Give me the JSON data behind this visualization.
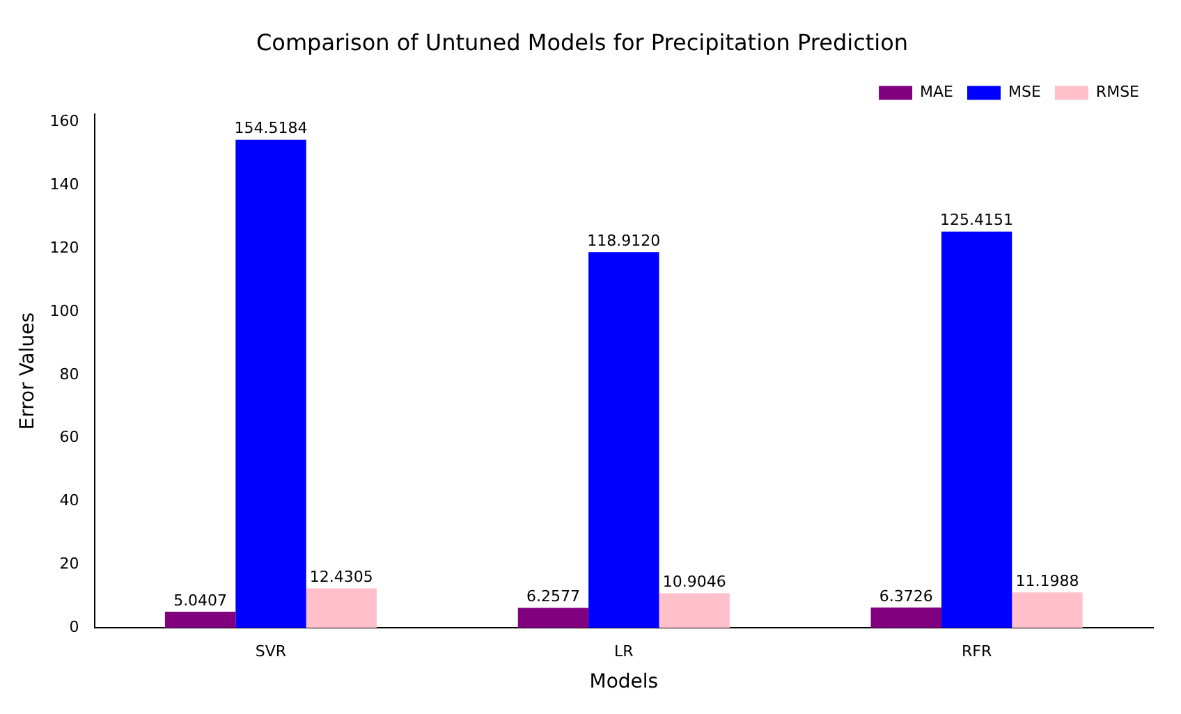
{
  "chart_data": {
    "type": "bar",
    "title": "Comparison of Untuned Models for Precipitation Prediction",
    "xlabel": "Models",
    "ylabel": "Error Values",
    "categories": [
      "SVR",
      "LR",
      "RFR"
    ],
    "series": [
      {
        "name": "MAE",
        "color": "#800080",
        "values": [
          5.0407,
          6.2577,
          6.3726
        ],
        "value_labels": [
          "5.0407",
          "6.2577",
          "6.3726"
        ]
      },
      {
        "name": "MSE",
        "color": "#0000ff",
        "values": [
          154.5184,
          118.912,
          125.4151
        ],
        "value_labels": [
          "154.5184",
          "118.9120",
          "125.4151"
        ]
      },
      {
        "name": "RMSE",
        "color": "#ffc0cb",
        "values": [
          12.4305,
          10.9046,
          11.1988
        ],
        "value_labels": [
          "12.4305",
          "10.9046",
          "11.1988"
        ]
      }
    ],
    "ylim": [
      0,
      162.5
    ],
    "yticks": [
      0,
      20,
      40,
      60,
      80,
      100,
      120,
      140,
      160
    ],
    "grid": false,
    "legend": "top right"
  }
}
